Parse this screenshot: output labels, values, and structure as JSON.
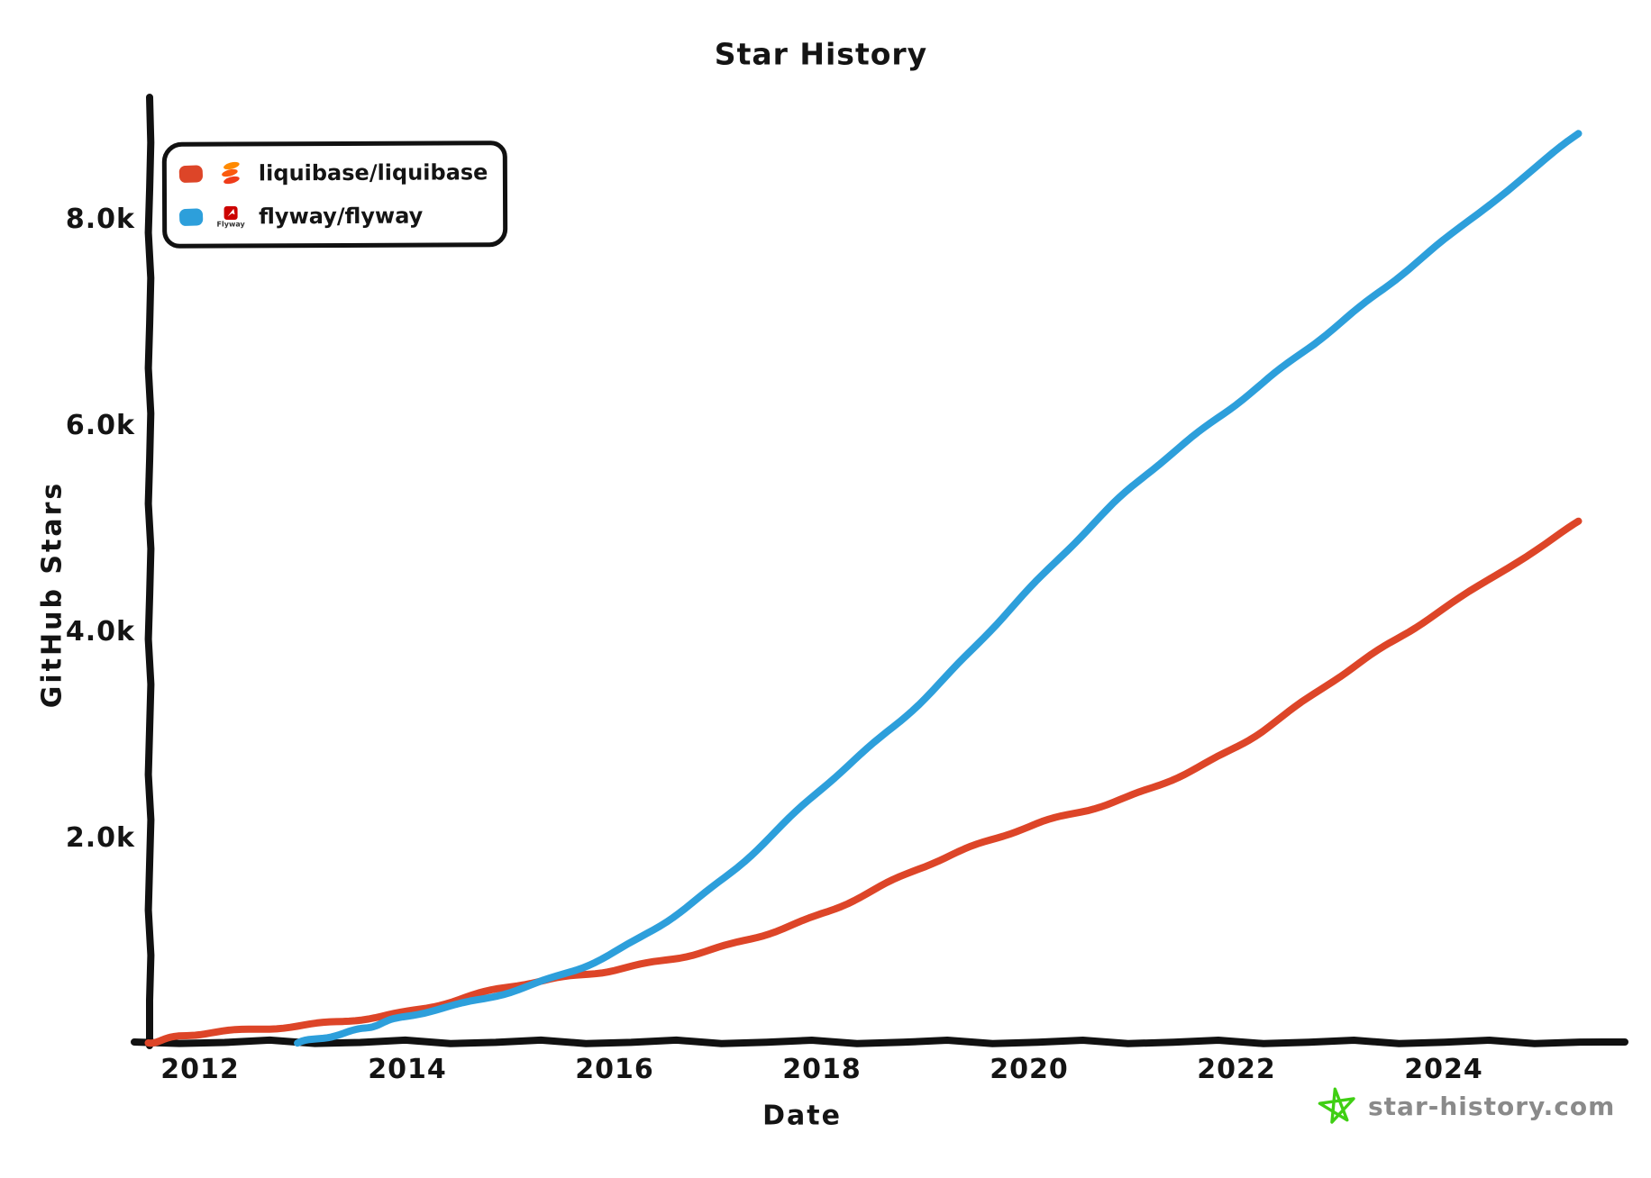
{
  "title": "Star History",
  "legend": {
    "items": [
      {
        "label": "liquibase/liquibase",
        "color": "#dd4528",
        "logo": "liquibase-logo",
        "logo_colors": [
          "#ff8a00",
          "#fb5a0e",
          "#ef3c1a"
        ]
      },
      {
        "label": "flyway/flyway",
        "color": "#2d9fdb",
        "logo": "flyway-logo",
        "logo_caption": "Flyway",
        "logo_colors": [
          "#cc0200",
          "#ffffff"
        ]
      }
    ]
  },
  "watermark": {
    "text": "star-history.com",
    "star_color": "#3fcf13",
    "text_color": "#8a8a8a"
  },
  "chart_data": {
    "type": "line",
    "title": "Star History",
    "xlabel": "Date",
    "ylabel": "GitHub Stars",
    "grid": false,
    "legend_position": "top-left",
    "style": "xkcd-handdrawn",
    "axis_color": "#111111",
    "x_axis": {
      "label": "Date",
      "range": [
        2011.4,
        2025.6
      ],
      "ticks": [
        {
          "value": 2012,
          "label": "2012"
        },
        {
          "value": 2014,
          "label": "2014"
        },
        {
          "value": 2016,
          "label": "2016"
        },
        {
          "value": 2018,
          "label": "2018"
        },
        {
          "value": 2020,
          "label": "2020"
        },
        {
          "value": 2022,
          "label": "2022"
        },
        {
          "value": 2024,
          "label": "2024"
        }
      ]
    },
    "y_axis": {
      "label": "GitHub Stars",
      "range": [
        0,
        9150
      ],
      "ticks": [
        {
          "value": 2000,
          "label": "2.0k"
        },
        {
          "value": 4000,
          "label": "4.0k"
        },
        {
          "value": 6000,
          "label": "6.0k"
        },
        {
          "value": 8000,
          "label": "8.0k"
        }
      ]
    },
    "series": [
      {
        "name": "liquibase/liquibase",
        "color": "#dd4528",
        "points": [
          [
            2011.5,
            0
          ],
          [
            2012,
            90
          ],
          [
            2013,
            170
          ],
          [
            2014,
            300
          ],
          [
            2015,
            550
          ],
          [
            2016,
            710
          ],
          [
            2017,
            920
          ],
          [
            2018,
            1250
          ],
          [
            2019,
            1720
          ],
          [
            2020,
            2100
          ],
          [
            2021,
            2400
          ],
          [
            2022,
            2870
          ],
          [
            2023,
            3560
          ],
          [
            2024,
            4210
          ],
          [
            2025.3,
            5050
          ]
        ]
      },
      {
        "name": "flyway/flyway",
        "color": "#2d9fdb",
        "points": [
          [
            2012.94,
            0
          ],
          [
            2013.5,
            120
          ],
          [
            2014,
            260
          ],
          [
            2015,
            500
          ],
          [
            2016,
            880
          ],
          [
            2017,
            1550
          ],
          [
            2018,
            2470
          ],
          [
            2019,
            3350
          ],
          [
            2020,
            4400
          ],
          [
            2021,
            5400
          ],
          [
            2022,
            6200
          ],
          [
            2023,
            6980
          ],
          [
            2024,
            7780
          ],
          [
            2025.3,
            8820
          ]
        ]
      }
    ]
  }
}
